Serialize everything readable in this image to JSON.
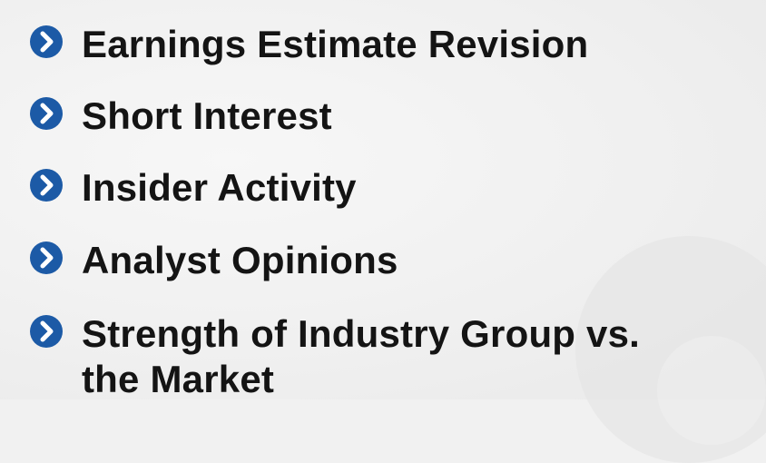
{
  "bullets": [
    {
      "label": "Earnings Estimate Revision",
      "icon": "chevron-right-circle-icon"
    },
    {
      "label": "Short Interest",
      "icon": "chevron-right-circle-icon"
    },
    {
      "label": "Insider Activity",
      "icon": "chevron-right-circle-icon"
    },
    {
      "label": "Analyst Opinions",
      "icon": "chevron-right-circle-icon"
    },
    {
      "label": "Strength of Industry Group vs. the Market",
      "icon": "chevron-right-circle-icon"
    }
  ],
  "colors": {
    "bullet": "#1c5aa6",
    "chevron": "#ffffff",
    "text": "#141414",
    "background": "#f1f1f1"
  }
}
